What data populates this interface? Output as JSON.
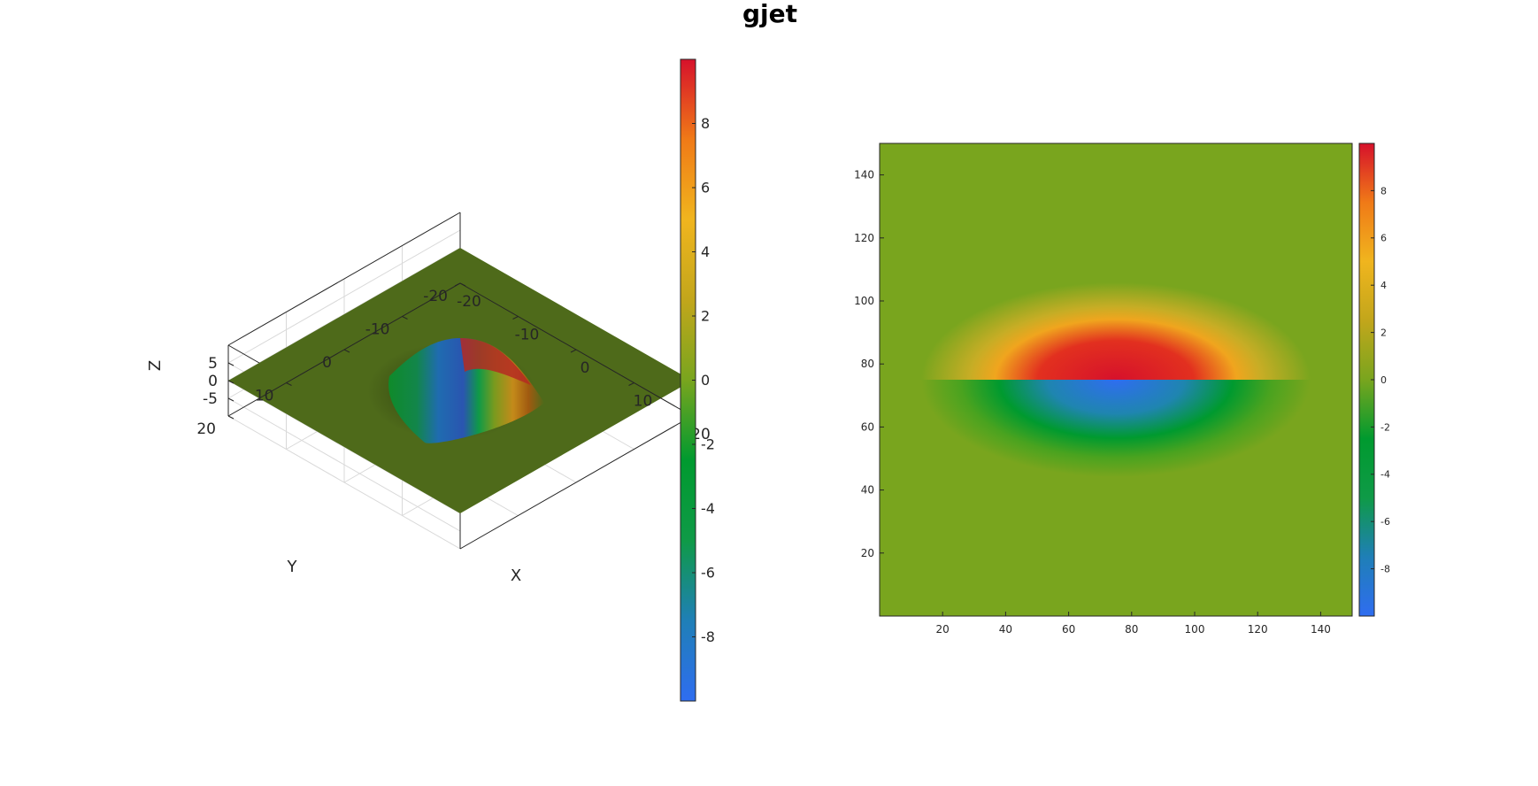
{
  "figure": {
    "title": "gjet"
  },
  "colors": {
    "colormap": [
      "#2f6df0",
      "#1f7fb7",
      "#0f9a47",
      "#009a2f",
      "#79a51e",
      "#c2a61b",
      "#f0b51e",
      "#f07a17",
      "#d6112b"
    ],
    "axis": "#262626",
    "grid": "#d9d9d9",
    "flat_plane": "#4e6a1a"
  },
  "chart_data": [
    {
      "type": "surface",
      "title": "",
      "xlabel": "X",
      "ylabel": "Y",
      "zlabel": "Z",
      "xlim": [
        -20,
        20
      ],
      "ylim": [
        -20,
        20
      ],
      "zlim": [
        -10,
        10
      ],
      "x_ticks": [
        "-20",
        "-10",
        "0",
        "10",
        "20"
      ],
      "y_ticks": [
        "-20",
        "-10",
        "0",
        "10",
        "20"
      ],
      "z_ticks": [
        "-5",
        "0",
        "5"
      ],
      "grid": true,
      "colorbar": {
        "location": "right",
        "range": [
          -10,
          10
        ],
        "ticks": [
          "-8",
          "-6",
          "-4",
          "-2",
          "0",
          "2",
          "4",
          "6",
          "8"
        ]
      },
      "surface": {
        "description_values": "z = 10·exp(-(x²+y²)/50)·sign(x) mirrored; peak +10 at x>0, trough -10 at x<0 near origin, flat 0 elsewhere",
        "peak_z": 10,
        "trough_z": -10
      }
    },
    {
      "type": "heatmap",
      "title": "",
      "xlabel": "",
      "ylabel": "",
      "xlim": [
        0,
        150
      ],
      "ylim": [
        0,
        150
      ],
      "x_ticks": [
        "20",
        "40",
        "60",
        "80",
        "100",
        "120",
        "140"
      ],
      "y_ticks": [
        "20",
        "40",
        "60",
        "80",
        "100",
        "120",
        "140"
      ],
      "colorbar": {
        "location": "right",
        "range": [
          -10,
          10
        ],
        "ticks": [
          "-8",
          "-6",
          "-4",
          "-2",
          "0",
          "2",
          "4",
          "6",
          "8"
        ]
      },
      "field": {
        "center": [
          75,
          75
        ],
        "upper_half_peak": 10,
        "lower_half_trough": -10,
        "background_value": 0
      }
    }
  ]
}
